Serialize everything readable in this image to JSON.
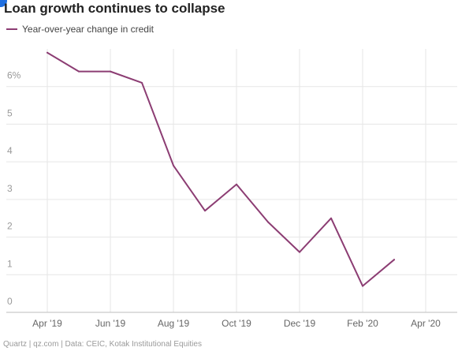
{
  "chart_data": {
    "type": "line",
    "title": "Loan growth continues to collapse",
    "xlabel": "",
    "ylabel": "",
    "ylim": [
      0,
      7
    ],
    "grid": true,
    "legend": "top-left",
    "y_ticks": [
      {
        "value": 0,
        "label": "0"
      },
      {
        "value": 1,
        "label": "1"
      },
      {
        "value": 2,
        "label": "2"
      },
      {
        "value": 3,
        "label": "3"
      },
      {
        "value": 4,
        "label": "4"
      },
      {
        "value": 5,
        "label": "5"
      },
      {
        "value": 6,
        "label": "6%"
      }
    ],
    "x_ticks": [
      "Apr '19",
      "Jun '19",
      "Aug '19",
      "Oct '19",
      "Dec '19",
      "Feb '20",
      "Apr '20"
    ],
    "x": [
      "Apr '19",
      "May '19",
      "Jun '19",
      "Jul '19",
      "Aug '19",
      "Sep '19",
      "Oct '19",
      "Nov '19",
      "Dec '19",
      "Jan '20",
      "Feb '20",
      "Mar '20"
    ],
    "series": [
      {
        "name": "Year-over-year change in credit",
        "color": "#8c3d73",
        "values": [
          6.9,
          6.4,
          6.4,
          6.1,
          3.9,
          2.7,
          3.4,
          2.4,
          1.6,
          2.5,
          0.7,
          1.4
        ]
      }
    ],
    "source": "Quartz | qz.com | Data: CEIC, Kotak Institutional Equities"
  }
}
